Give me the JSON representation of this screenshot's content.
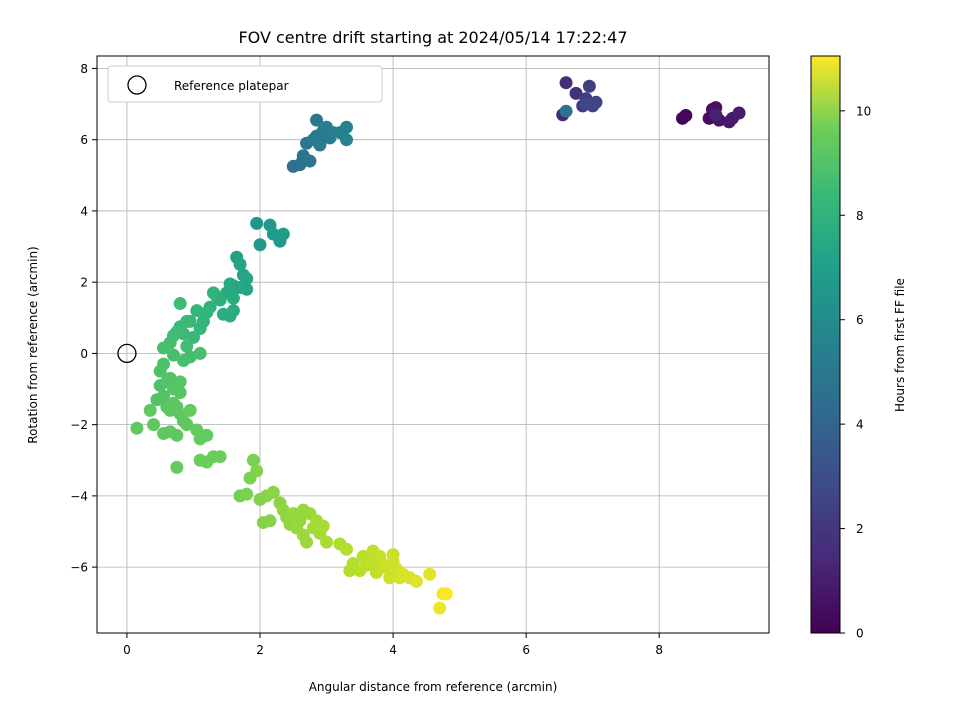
{
  "chart_data": {
    "type": "scatter",
    "title": "FOV centre drift starting at 2024/05/14 17:22:47",
    "xlabel": "Angular distance from reference (arcmin)",
    "ylabel": "Rotation from reference (arcmin)",
    "xlim": [
      -0.45,
      9.65
    ],
    "ylim": [
      -7.85,
      8.35
    ],
    "x_ticks": [
      0,
      2,
      4,
      6,
      8
    ],
    "y_ticks": [
      -6,
      -4,
      -2,
      0,
      2,
      4,
      6,
      8
    ],
    "grid": true,
    "legend": {
      "placement": "top-left",
      "entries": [
        "Reference platepar"
      ]
    },
    "colorbar": {
      "label": "Hours from first FF file",
      "range": [
        0,
        11.05
      ],
      "ticks": [
        0,
        2,
        4,
        6,
        8,
        10
      ],
      "colormap": "viridis"
    },
    "reference_point": {
      "x": 0,
      "y": 0,
      "marker": "open-circle"
    },
    "points": [
      [
        8.35,
        6.6,
        0.1
      ],
      [
        8.4,
        6.68,
        0.2
      ],
      [
        8.75,
        6.6,
        0.3
      ],
      [
        8.8,
        6.85,
        0.4
      ],
      [
        8.85,
        6.9,
        0.5
      ],
      [
        8.9,
        6.55,
        0.6
      ],
      [
        9.05,
        6.5,
        0.7
      ],
      [
        9.1,
        6.6,
        0.8
      ],
      [
        9.2,
        6.75,
        0.9
      ],
      [
        8.85,
        6.7,
        1.0
      ],
      [
        6.55,
        6.7,
        1.2
      ],
      [
        6.6,
        7.6,
        1.4
      ],
      [
        6.75,
        7.3,
        1.6
      ],
      [
        6.85,
        6.95,
        1.8
      ],
      [
        6.9,
        7.15,
        2.0
      ],
      [
        6.95,
        7.5,
        2.1
      ],
      [
        7.0,
        6.95,
        2.2
      ],
      [
        7.05,
        7.05,
        2.3
      ],
      [
        6.9,
        7.0,
        2.4
      ],
      [
        6.6,
        6.8,
        4.2
      ],
      [
        2.5,
        5.25,
        4.0
      ],
      [
        2.6,
        5.3,
        4.1
      ],
      [
        2.65,
        5.55,
        4.2
      ],
      [
        2.7,
        5.9,
        4.3
      ],
      [
        2.75,
        5.4,
        4.4
      ],
      [
        2.8,
        6.0,
        4.5
      ],
      [
        2.85,
        6.1,
        4.5
      ],
      [
        2.85,
        6.55,
        4.4
      ],
      [
        2.9,
        5.85,
        4.6
      ],
      [
        2.95,
        6.25,
        4.6
      ],
      [
        3.0,
        6.35,
        4.7
      ],
      [
        3.05,
        6.05,
        4.7
      ],
      [
        3.1,
        6.2,
        4.8
      ],
      [
        3.2,
        6.2,
        4.8
      ],
      [
        3.3,
        6.0,
        4.9
      ],
      [
        3.3,
        6.35,
        4.9
      ],
      [
        2.65,
        5.45,
        4.3
      ],
      [
        2.95,
        6.15,
        4.5
      ],
      [
        1.95,
        3.65,
        5.8
      ],
      [
        2.0,
        3.05,
        5.9
      ],
      [
        2.15,
        3.6,
        5.9
      ],
      [
        2.2,
        3.35,
        6.0
      ],
      [
        2.3,
        3.15,
        6.0
      ],
      [
        2.35,
        3.35,
        6.1
      ],
      [
        1.65,
        2.7,
        6.3
      ],
      [
        1.7,
        2.5,
        6.4
      ],
      [
        1.75,
        2.2,
        6.4
      ],
      [
        1.8,
        2.1,
        6.5
      ],
      [
        1.8,
        1.8,
        6.5
      ],
      [
        1.7,
        1.85,
        6.6
      ],
      [
        1.6,
        1.9,
        6.6
      ],
      [
        1.55,
        1.95,
        6.7
      ],
      [
        1.5,
        1.7,
        6.7
      ],
      [
        1.6,
        1.55,
        6.8
      ],
      [
        1.6,
        1.2,
        6.8
      ],
      [
        1.55,
        1.05,
        6.9
      ],
      [
        1.45,
        1.1,
        6.9
      ],
      [
        1.4,
        1.5,
        7.0
      ],
      [
        1.35,
        1.6,
        7.0
      ],
      [
        1.3,
        1.7,
        7.1
      ],
      [
        1.25,
        1.3,
        7.1
      ],
      [
        1.2,
        1.15,
        7.2
      ],
      [
        1.15,
        0.9,
        7.2
      ],
      [
        1.1,
        0.7,
        7.3
      ],
      [
        1.05,
        1.2,
        7.3
      ],
      [
        1.0,
        0.45,
        7.4
      ],
      [
        0.95,
        0.9,
        7.4
      ],
      [
        0.9,
        0.9,
        7.5
      ],
      [
        0.85,
        0.55,
        7.5
      ],
      [
        0.8,
        0.75,
        7.5
      ],
      [
        0.8,
        1.4,
        7.6
      ],
      [
        0.75,
        0.6,
        7.6
      ],
      [
        0.7,
        0.5,
        7.6
      ],
      [
        0.65,
        0.3,
        7.7
      ],
      [
        0.9,
        0.2,
        7.7
      ],
      [
        0.95,
        -0.1,
        7.7
      ],
      [
        1.1,
        0.0,
        7.8
      ],
      [
        0.85,
        -0.2,
        7.8
      ],
      [
        0.7,
        -0.05,
        7.8
      ],
      [
        0.55,
        0.15,
        7.8
      ],
      [
        0.55,
        -0.3,
        7.9
      ],
      [
        0.5,
        -0.5,
        7.9
      ],
      [
        0.5,
        -0.9,
        7.9
      ],
      [
        0.45,
        -1.3,
        8.0
      ],
      [
        0.55,
        -1.2,
        8.0
      ],
      [
        0.6,
        -0.8,
        8.0
      ],
      [
        0.65,
        -0.7,
        8.0
      ],
      [
        0.7,
        -1.0,
        8.1
      ],
      [
        0.8,
        -1.1,
        8.1
      ],
      [
        0.8,
        -0.8,
        8.1
      ],
      [
        0.6,
        -1.5,
        8.1
      ],
      [
        0.65,
        -1.6,
        8.2
      ],
      [
        0.7,
        -1.4,
        8.2
      ],
      [
        0.75,
        -1.5,
        8.2
      ],
      [
        0.8,
        -1.7,
        8.2
      ],
      [
        0.85,
        -1.9,
        8.2
      ],
      [
        0.9,
        -2.0,
        8.3
      ],
      [
        0.75,
        -2.3,
        8.3
      ],
      [
        0.65,
        -2.2,
        8.3
      ],
      [
        0.55,
        -2.25,
        8.3
      ],
      [
        0.4,
        -2.0,
        8.3
      ],
      [
        0.35,
        -1.6,
        8.3
      ],
      [
        0.15,
        -2.1,
        8.3
      ],
      [
        0.95,
        -1.6,
        8.4
      ],
      [
        1.05,
        -2.15,
        8.4
      ],
      [
        1.1,
        -2.4,
        8.4
      ],
      [
        1.2,
        -2.3,
        8.4
      ],
      [
        0.75,
        -3.2,
        8.4
      ],
      [
        1.1,
        -3.0,
        8.5
      ],
      [
        1.2,
        -3.05,
        8.5
      ],
      [
        1.3,
        -2.9,
        8.5
      ],
      [
        1.4,
        -2.9,
        8.5
      ],
      [
        1.7,
        -4.0,
        8.7
      ],
      [
        1.8,
        -3.95,
        8.8
      ],
      [
        1.85,
        -3.5,
        8.8
      ],
      [
        1.9,
        -3.0,
        8.8
      ],
      [
        1.95,
        -3.3,
        8.9
      ],
      [
        2.0,
        -4.1,
        8.9
      ],
      [
        2.05,
        -4.75,
        9.0
      ],
      [
        2.1,
        -4.0,
        9.0
      ],
      [
        2.15,
        -4.7,
        9.0
      ],
      [
        2.2,
        -3.9,
        9.1
      ],
      [
        2.3,
        -4.2,
        9.1
      ],
      [
        2.35,
        -4.4,
        9.2
      ],
      [
        2.4,
        -4.6,
        9.2
      ],
      [
        2.45,
        -4.8,
        9.2
      ],
      [
        2.5,
        -4.5,
        9.3
      ],
      [
        2.55,
        -4.9,
        9.3
      ],
      [
        2.6,
        -4.7,
        9.3
      ],
      [
        2.65,
        -5.1,
        9.4
      ],
      [
        2.7,
        -5.3,
        9.4
      ],
      [
        2.75,
        -4.5,
        9.4
      ],
      [
        2.8,
        -4.9,
        9.5
      ],
      [
        2.85,
        -4.7,
        9.5
      ],
      [
        2.9,
        -5.05,
        9.5
      ],
      [
        2.95,
        -4.85,
        9.6
      ],
      [
        3.0,
        -5.3,
        9.6
      ],
      [
        2.65,
        -4.4,
        9.3
      ],
      [
        3.2,
        -5.35,
        9.7
      ],
      [
        3.3,
        -5.5,
        9.8
      ],
      [
        3.35,
        -6.1,
        9.8
      ],
      [
        3.4,
        -5.9,
        9.8
      ],
      [
        3.5,
        -6.1,
        9.9
      ],
      [
        3.55,
        -5.7,
        9.9
      ],
      [
        3.6,
        -5.95,
        9.9
      ],
      [
        3.65,
        -5.85,
        10.0
      ],
      [
        3.7,
        -5.55,
        10.0
      ],
      [
        3.75,
        -6.15,
        10.0
      ],
      [
        3.8,
        -5.7,
        10.1
      ],
      [
        3.85,
        -6.0,
        10.1
      ],
      [
        3.9,
        -5.95,
        10.2
      ],
      [
        3.95,
        -6.3,
        10.2
      ],
      [
        4.0,
        -5.65,
        10.2
      ],
      [
        4.05,
        -6.05,
        10.3
      ],
      [
        4.1,
        -6.3,
        10.3
      ],
      [
        4.15,
        -6.2,
        10.4
      ],
      [
        4.25,
        -6.3,
        10.4
      ],
      [
        4.35,
        -6.4,
        10.5
      ],
      [
        4.55,
        -6.2,
        10.6
      ],
      [
        4.7,
        -7.15,
        10.8
      ],
      [
        4.75,
        -6.75,
        10.9
      ],
      [
        4.8,
        -6.75,
        11.0
      ],
      [
        4.0,
        -5.85,
        10.2
      ],
      [
        3.7,
        -5.8,
        10.0
      ]
    ]
  }
}
